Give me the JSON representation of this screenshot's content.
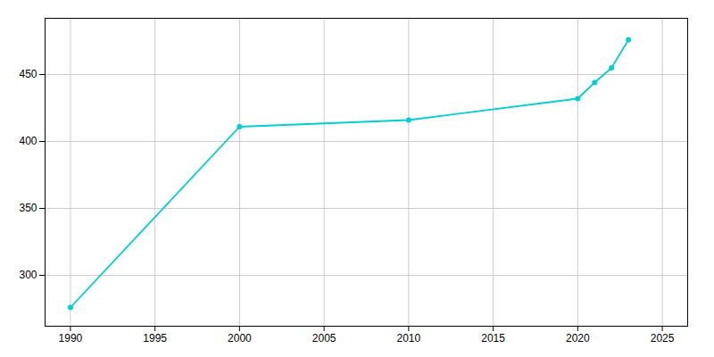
{
  "chart_data": {
    "type": "line",
    "x": [
      1990,
      2000,
      2010,
      2020,
      2021,
      2022,
      2023
    ],
    "values": [
      276,
      411,
      416,
      432,
      444,
      455,
      476
    ],
    "color": "#00CED1",
    "marker": "circle",
    "xlim": [
      1988.5,
      2026.5
    ],
    "ylim": [
      262,
      492
    ],
    "xticks": [
      1990,
      1995,
      2000,
      2005,
      2010,
      2015,
      2020,
      2025
    ],
    "yticks": [
      300,
      350,
      400,
      450
    ],
    "grid": true
  }
}
